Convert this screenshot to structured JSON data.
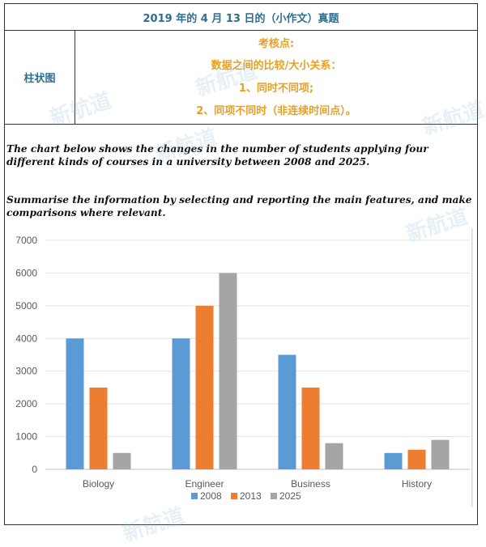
{
  "header": {
    "title": "2019 年的 4 月 13 日的（小作文）真题",
    "type_label": "柱状图",
    "points": [
      "考核点:",
      "数据之间的比较/大小关系：",
      "1、同时不同项;",
      "2、同项不同时（非连续时间点）。"
    ]
  },
  "task": {
    "intro": "The chart below shows the changes in the number of students applying four different kinds of courses in a university between 2008 and 2025.",
    "instruction": "Summarise the information by selecting and reporting the main features, and make comparisons where relevant."
  },
  "watermark": {
    "text": "新航道"
  },
  "chart_data": {
    "type": "bar",
    "categories": [
      "Biology",
      "Engineer",
      "Business",
      "History"
    ],
    "series": [
      {
        "name": "2008",
        "color": "#5b9bd5",
        "values": [
          4000,
          4000,
          3500,
          500
        ]
      },
      {
        "name": "2013",
        "color": "#ed7d31",
        "values": [
          2500,
          5000,
          2500,
          600
        ]
      },
      {
        "name": "2025",
        "color": "#a5a5a5",
        "values": [
          500,
          6000,
          800,
          900
        ]
      }
    ],
    "y_ticks": [
      "0",
      "1000",
      "2000",
      "3000",
      "4000",
      "5000",
      "6000",
      "7000"
    ],
    "ylim": [
      0,
      7000
    ],
    "grid": true,
    "legend_position": "bottom"
  }
}
